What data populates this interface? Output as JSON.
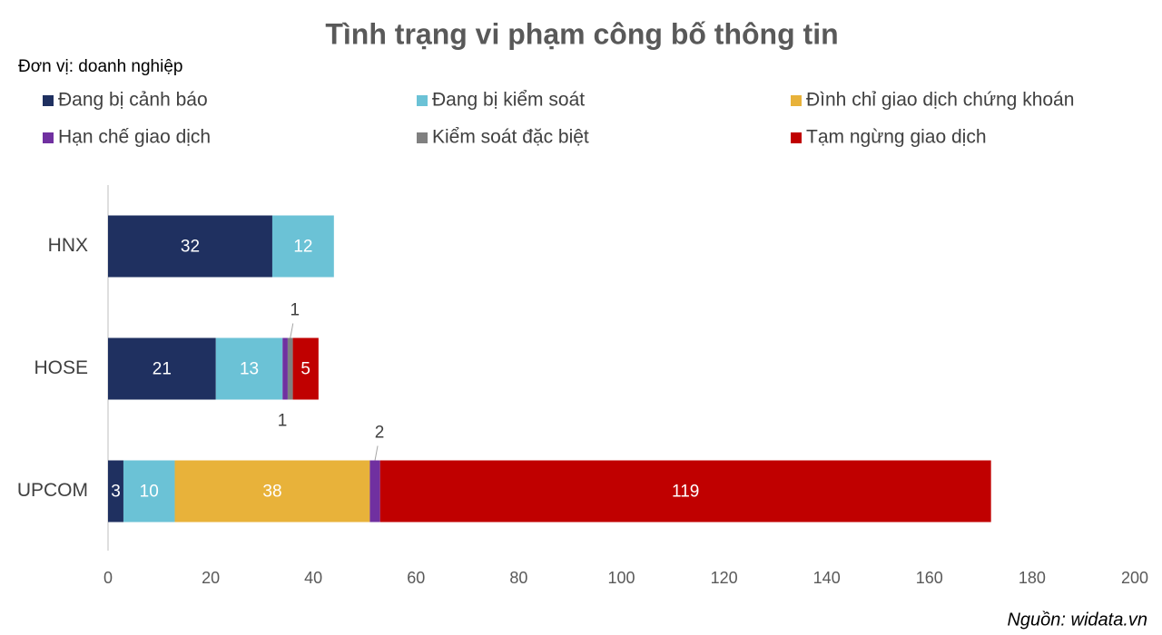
{
  "chart_data": {
    "type": "stacked-bar-horizontal",
    "title": "Tình trạng vi phạm công bố thông tin",
    "subtitle": "Đơn vị: doanh nghiệp",
    "source": "Nguồn: widata.vn",
    "categories": [
      "HNX",
      "HOSE",
      "UPCOM"
    ],
    "series": [
      {
        "name": "Đang bị cảnh báo",
        "color": "#1f3060",
        "values": [
          32,
          21,
          3
        ]
      },
      {
        "name": "Đang bị kiểm soát",
        "color": "#6bc2d6",
        "values": [
          12,
          13,
          10
        ]
      },
      {
        "name": "Đình chỉ giao dịch chứng khoán",
        "color": "#e8b23a",
        "values": [
          null,
          null,
          38
        ]
      },
      {
        "name": "Hạn chế giao dịch",
        "color": "#7030a0",
        "values": [
          null,
          1,
          2
        ]
      },
      {
        "name": "Kiểm soát đặc biệt",
        "color": "#808080",
        "values": [
          null,
          1,
          null
        ]
      },
      {
        "name": "Tạm ngừng giao dịch",
        "color": "#c00000",
        "values": [
          null,
          5,
          119
        ]
      }
    ],
    "xlim": [
      0,
      200
    ],
    "xticks": [
      0,
      20,
      40,
      60,
      80,
      100,
      120,
      140,
      160,
      180,
      200
    ],
    "grid": false
  }
}
